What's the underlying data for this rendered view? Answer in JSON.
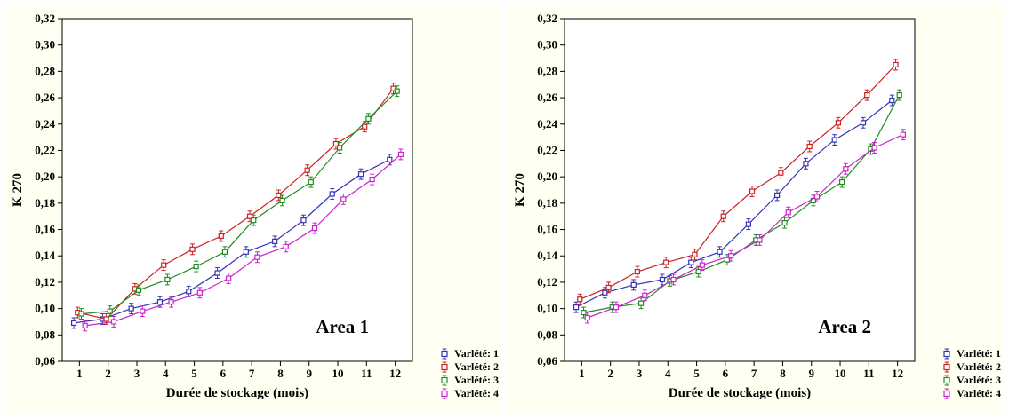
{
  "figure": {
    "background": "#ffffff",
    "panel_background": "#fffff2",
    "plot_background": "#ffffff",
    "axis_color": "#000000"
  },
  "chart_data": [
    {
      "type": "line",
      "title": "Area 1",
      "xlabel": "Durée de stockage (mois)",
      "ylabel": "K 270",
      "x": [
        1,
        2,
        3,
        4,
        5,
        6,
        7,
        8,
        9,
        10,
        11,
        12
      ],
      "xlim": [
        0.4,
        12.6
      ],
      "ylim": [
        0.06,
        0.32
      ],
      "ytick_step": 0.02,
      "decimal_separator": ",",
      "grid": false,
      "legend_position": "right-bottom",
      "error_bar": 0.004,
      "series": [
        {
          "name": "Varlété: 1",
          "color": "#3333b4",
          "marker": "square",
          "values": [
            0.089,
            0.092,
            0.1,
            0.105,
            0.113,
            0.127,
            0.143,
            0.151,
            0.167,
            0.187,
            0.202,
            0.213
          ]
        },
        {
          "name": "Varlété: 2",
          "color": "#cc2020",
          "marker": "square",
          "values": [
            0.097,
            0.092,
            0.115,
            0.133,
            0.145,
            0.155,
            0.17,
            0.186,
            0.205,
            0.225,
            0.238,
            0.267
          ]
        },
        {
          "name": "Varlété: 3",
          "color": "#1f8c1f",
          "marker": "square",
          "values": [
            0.096,
            0.098,
            0.114,
            0.122,
            0.132,
            0.143,
            0.167,
            0.182,
            0.196,
            0.222,
            0.244,
            0.265
          ]
        },
        {
          "name": "Varlété: 4",
          "color": "#cc22cc",
          "marker": "square",
          "values": [
            0.087,
            0.09,
            0.098,
            0.105,
            0.112,
            0.123,
            0.139,
            0.147,
            0.161,
            0.183,
            0.198,
            0.217
          ]
        }
      ]
    },
    {
      "type": "line",
      "title": "Area 2",
      "xlabel": "Durée de stockage (mois)",
      "ylabel": "K 270",
      "x": [
        1,
        2,
        3,
        4,
        5,
        6,
        7,
        8,
        9,
        10,
        11,
        12
      ],
      "xlim": [
        0.4,
        12.6
      ],
      "ylim": [
        0.06,
        0.32
      ],
      "ytick_step": 0.02,
      "decimal_separator": ",",
      "grid": false,
      "legend_position": "right-bottom",
      "error_bar": 0.004,
      "series": [
        {
          "name": "Varlété: 1",
          "color": "#3333b4",
          "marker": "square",
          "values": [
            0.101,
            0.112,
            0.118,
            0.122,
            0.135,
            0.143,
            0.164,
            0.186,
            0.21,
            0.228,
            0.241,
            0.258
          ]
        },
        {
          "name": "Varlété: 2",
          "color": "#cc2020",
          "marker": "square",
          "values": [
            0.107,
            0.116,
            0.128,
            0.135,
            0.141,
            0.17,
            0.189,
            0.203,
            0.223,
            0.241,
            0.262,
            0.285
          ]
        },
        {
          "name": "Varlété: 3",
          "color": "#1f8c1f",
          "marker": "square",
          "values": [
            0.097,
            0.101,
            0.104,
            0.121,
            0.128,
            0.137,
            0.152,
            0.165,
            0.182,
            0.196,
            0.221,
            0.262
          ]
        },
        {
          "name": "Varlété: 4",
          "color": "#cc22cc",
          "marker": "square",
          "values": [
            0.093,
            0.101,
            0.11,
            0.122,
            0.133,
            0.14,
            0.152,
            0.173,
            0.185,
            0.206,
            0.222,
            0.232
          ]
        }
      ]
    }
  ]
}
